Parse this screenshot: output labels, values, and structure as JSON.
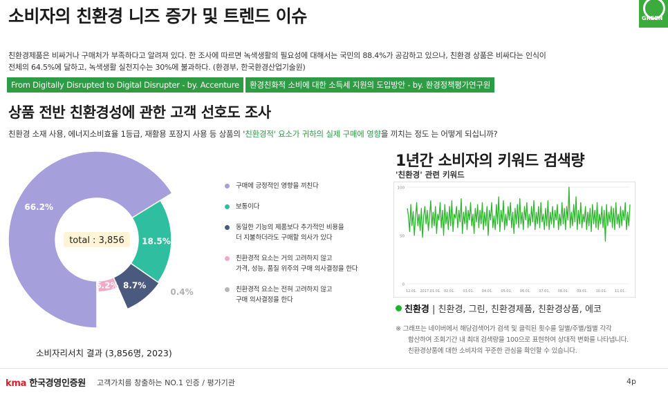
{
  "header": {
    "title": "소비자의 친환경 니즈 증가 및 트렌드 이슈",
    "logo_text": "GREEN"
  },
  "intro": {
    "line1": "친환경제품은 비싸거나 구매처가 부족하다고 알려져 있다. 한 조사에 따르면 녹색생활의 필요성에 대해서는 국민의 88.4%가 공감하고 있으나, 친환경 상품은 비싸다는 인식이",
    "line2": "전체의 64.5%에 달하고, 녹색생활 실천지수는 30%에 불과하다. (환경부, 한국환경산업기술원)"
  },
  "tags": [
    "From Digitally Disrupted to Digital Disrupter - by. Accenture",
    "환경친화적 소비에 대한 소득세 지원의 도입방안 - by. 환경정책평가연구원"
  ],
  "survey": {
    "title": "상품 전반 친환경성에 관한 고객 선호도 조사",
    "question_pre": "친환경 소재 사용, 에너지소비효율 1등급, 재활용 포장지 사용 등 상품의 '",
    "question_hl": "친환경적' 요소가 귀하의 실제 구매에 영향",
    "question_post": "을 끼치는 정도 는 어떻게 되십니까?",
    "total_label": "total : 3,856",
    "caption": "소비자리서치 결과 (3,856명,  2023)"
  },
  "pie_chart": {
    "type": "pie",
    "total": 3856,
    "slices": [
      {
        "label": "구매에 긍정적인 영향을 끼친다",
        "value": 66.2,
        "display": "66.2%",
        "color": "#a59fdb"
      },
      {
        "label": "보통이다",
        "value": 18.5,
        "display": "18.5%",
        "color": "#2fbfa0"
      },
      {
        "label": "동일한 기능의 제품보다 추가적인 비용을\n더 지불하더라도 구매할 의사가 있다",
        "value": 8.7,
        "display": "8.7%",
        "color": "#4a5a7e"
      },
      {
        "label": "친환경적 요소는 거의 고려하지 않고\n가격, 성능, 품질 위주의 구매 의사결정을 한다",
        "value": 6.2,
        "display": "6.2%",
        "color": "#f2a9c9"
      },
      {
        "label": "친환경적 요소는 전혀 고려하지 않고\n구매 의사결정을 한다",
        "value": 0.4,
        "display": "0.4%",
        "color": "#b5b5b5"
      }
    ]
  },
  "trend": {
    "title": "1년간 소비자의 키워드 검색량",
    "subtitle": "'친환경' 관련 키워드",
    "legend_main": "친환경",
    "legend_rest": " | 친환경, 그린, 친환경제품, 친환경상품, 에코",
    "note1": "※  그래프는 네이버에서 해당검색어가 검색 및 클릭된 횟수를 일별/주별/월별 각각",
    "note2": "합산하여 조회기간 내 최대 검색량을 100으로 표현하여 상대적 변화를 나타냅니다.",
    "note3": "친환경상품에 대한 소비자의 꾸준한 관심을 확인할 수 있습니다."
  },
  "chart_data": [
    {
      "type": "pie",
      "categories": [
        "구매에 긍정적인 영향을 끼친다",
        "보통이다",
        "동일한 기능의 제품보다 추가적인 비용을 더 지불하더라도 구매할 의사가 있다",
        "친환경적 요소는 거의 고려하지 않고 가격, 성능, 품질 위주의 구매 의사결정을 한다",
        "친환경적 요소는 전혀 고려하지 않고 구매 의사결정을 한다"
      ],
      "values": [
        66.2,
        18.5,
        8.7,
        6.2,
        0.4
      ],
      "legend": "right"
    },
    {
      "type": "line",
      "yticks": [
        100,
        50,
        0
      ],
      "ylim": [
        0,
        100
      ],
      "xticks": [
        "12.01.",
        "2017.01.01.",
        "02.01.",
        "03.01.",
        "04.01.",
        "05.01.",
        "06.01.",
        "07.01.",
        "08.01.",
        "09.01.",
        "10.01.",
        "11.01."
      ],
      "grid": true,
      "series": [
        {
          "values": [
            78,
            70,
            54,
            82,
            60,
            75,
            50,
            68,
            84,
            60,
            72,
            55,
            78,
            48,
            70,
            80,
            62,
            76,
            55,
            70,
            86,
            58,
            74,
            60,
            80,
            52,
            72,
            66,
            84,
            58,
            76,
            50,
            82,
            62,
            74,
            56,
            80,
            60,
            86,
            54,
            72,
            68,
            80,
            58,
            76,
            64,
            88,
            52,
            74,
            62,
            80,
            56,
            76,
            66,
            84,
            60,
            72,
            52,
            78,
            64,
            82,
            58,
            76,
            62,
            84,
            56,
            74,
            60,
            80,
            50,
            76,
            66,
            84,
            58,
            70,
            56,
            82,
            62,
            90,
            54,
            76,
            64,
            86,
            56,
            72,
            60,
            80,
            66,
            84,
            58,
            74,
            52,
            78,
            62,
            82,
            58,
            88,
            62,
            74,
            56,
            80,
            66,
            84,
            58,
            72,
            60,
            80,
            64,
            86,
            56,
            74,
            62,
            80,
            58,
            84,
            64,
            72,
            56,
            78,
            60,
            86,
            56,
            74,
            62,
            80,
            58,
            76,
            66,
            82,
            56,
            72,
            60,
            84,
            62,
            78,
            56,
            80,
            66,
            100,
            58,
            74,
            60,
            82,
            64,
            90,
            56,
            76,
            62,
            84,
            58,
            72,
            64,
            80,
            56,
            74,
            60,
            78,
            54,
            82,
            62,
            76,
            58,
            84,
            56,
            72,
            62,
            80,
            58,
            76,
            44,
            82,
            60,
            74,
            64,
            80,
            58,
            78,
            56,
            84,
            62,
            72,
            58,
            80,
            60,
            76,
            66,
            84,
            56,
            74,
            60,
            82
          ]
        }
      ]
    }
  ]
}
